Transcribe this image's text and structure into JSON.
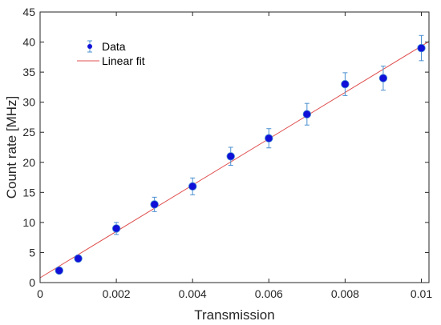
{
  "chart_data": {
    "type": "scatter",
    "title": "",
    "xlabel": "Transmission",
    "ylabel": "Count rate [MHz]",
    "xlim": [
      0,
      0.0102
    ],
    "ylim": [
      0,
      45
    ],
    "x_ticks": [
      0,
      0.002,
      0.004,
      0.006,
      0.008,
      0.01
    ],
    "x_tick_labels": [
      "0",
      "0.002",
      "0.004",
      "0.006",
      "0.008",
      "0.01"
    ],
    "y_ticks": [
      0,
      5,
      10,
      15,
      20,
      25,
      30,
      35,
      40,
      45
    ],
    "y_tick_labels": [
      "0",
      "5",
      "10",
      "15",
      "20",
      "25",
      "30",
      "35",
      "40",
      "45"
    ],
    "grid": false,
    "legend_position": "top-left",
    "series": [
      {
        "name": "Data",
        "kind": "errorbar",
        "marker_color": "#1010d8",
        "errorbar_color": "#4a8fd0",
        "x": [
          0.0005,
          0.001,
          0.002,
          0.003,
          0.004,
          0.005,
          0.006,
          0.007,
          0.008,
          0.009,
          0.01
        ],
        "y": [
          2,
          4,
          9,
          13,
          16,
          21,
          24,
          28,
          33,
          34,
          39
        ],
        "yerr": [
          0.3,
          0.5,
          1.0,
          1.2,
          1.4,
          1.5,
          1.6,
          1.8,
          1.9,
          2.0,
          2.1
        ]
      },
      {
        "name": "Linear fit",
        "kind": "line",
        "color": "#e05050",
        "x": [
          0,
          0.0102
        ],
        "y": [
          0.8,
          40.1
        ]
      }
    ]
  }
}
